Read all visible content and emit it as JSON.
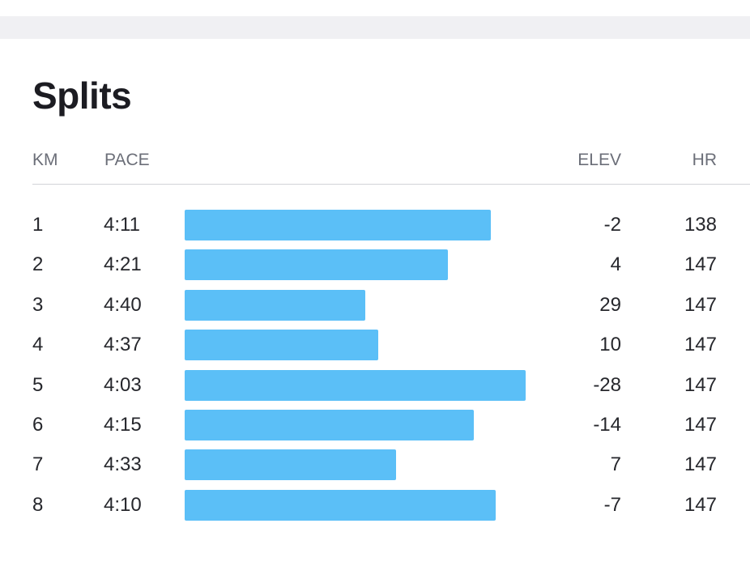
{
  "title": "Splits",
  "columns": {
    "km": "KM",
    "pace": "PACE",
    "elev": "ELEV",
    "hr": "HR"
  },
  "colors": {
    "bar": "#5bbff7",
    "text": "#26272c",
    "header": "#6b6e78"
  },
  "splits": [
    {
      "km": "1",
      "pace": "4:11",
      "elev": "-2",
      "hr": "138",
      "pace_seconds": 251
    },
    {
      "km": "2",
      "pace": "4:21",
      "elev": "4",
      "hr": "147",
      "pace_seconds": 261
    },
    {
      "km": "3",
      "pace": "4:40",
      "elev": "29",
      "hr": "147",
      "pace_seconds": 280
    },
    {
      "km": "4",
      "pace": "4:37",
      "elev": "10",
      "hr": "147",
      "pace_seconds": 277
    },
    {
      "km": "5",
      "pace": "4:03",
      "elev": "-28",
      "hr": "147",
      "pace_seconds": 243
    },
    {
      "km": "6",
      "pace": "4:15",
      "elev": "-14",
      "hr": "147",
      "pace_seconds": 255
    },
    {
      "km": "7",
      "pace": "4:33",
      "elev": "7",
      "hr": "147",
      "pace_seconds": 273
    },
    {
      "km": "8",
      "pace": "4:10",
      "elev": "-7",
      "hr": "147",
      "pace_seconds": 250
    }
  ]
}
